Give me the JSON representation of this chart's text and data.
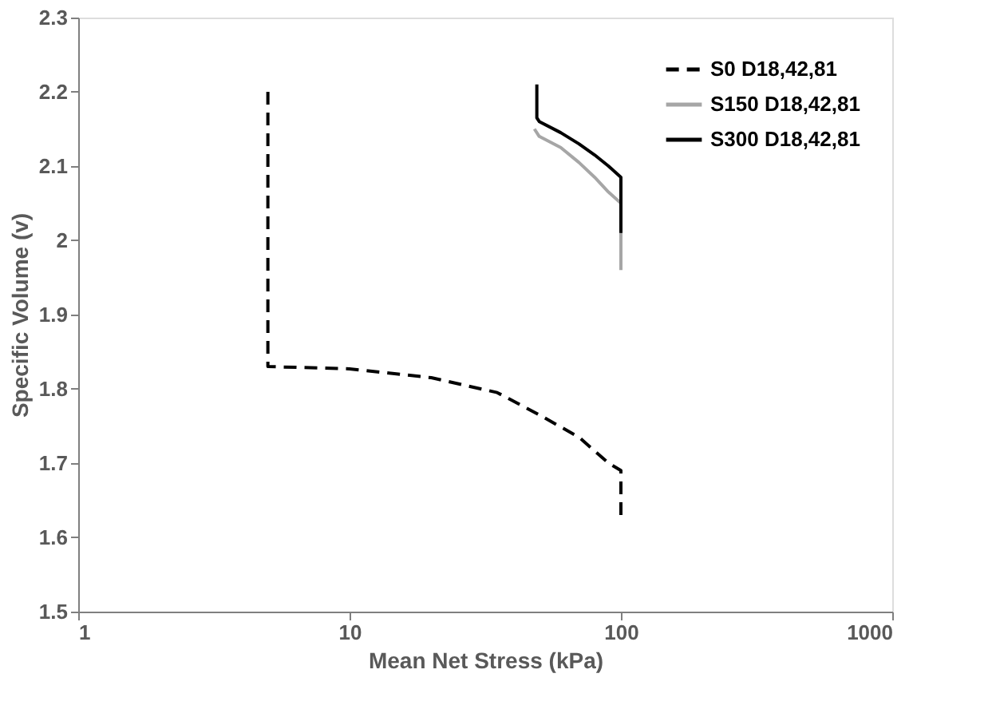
{
  "chart_data": {
    "type": "line",
    "xlabel": "Mean Net Stress (kPa)",
    "ylabel": "Specific Volume (v)",
    "log": "x",
    "xlim": [
      1,
      1000
    ],
    "xticks": [
      1,
      10,
      100,
      1000
    ],
    "ylim": [
      1.5,
      2.3
    ],
    "yticks": [
      1.5,
      1.6,
      1.7,
      1.8,
      1.9,
      2,
      2.1,
      2.2,
      2.3
    ],
    "grid": false,
    "legend": "top right",
    "marker": "none",
    "series": [
      {
        "name": "S0 D18,42,81",
        "color": "#000000",
        "line_style": "dashed",
        "x": [
          5,
          5,
          10,
          20,
          35,
          50,
          70,
          90,
          100,
          100
        ],
        "values": [
          2.2,
          1.83,
          1.827,
          1.815,
          1.795,
          1.765,
          1.735,
          1.7,
          1.69,
          1.63
        ]
      },
      {
        "name": "S150 D18,42,81",
        "color": "#a6a6a6",
        "line_style": "solid",
        "x": [
          48,
          50,
          60,
          70,
          80,
          90,
          100,
          100
        ],
        "values": [
          2.15,
          2.14,
          2.125,
          2.105,
          2.085,
          2.065,
          2.05,
          1.96
        ]
      },
      {
        "name": "S300 D18,42,81",
        "color": "#000000",
        "line_style": "solid",
        "x": [
          49,
          49,
          50,
          60,
          70,
          80,
          90,
          100,
          100
        ],
        "values": [
          2.21,
          2.165,
          2.16,
          2.145,
          2.13,
          2.115,
          2.1,
          2.085,
          2.01
        ]
      }
    ]
  }
}
